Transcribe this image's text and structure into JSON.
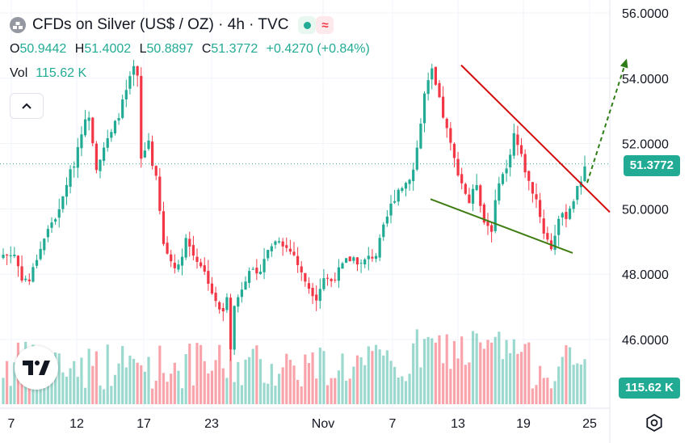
{
  "header": {
    "title": "CFDs on Silver (US$ / OZ) · 4h · TVC",
    "ohlc": [
      {
        "k": "O",
        "v": "50.9442"
      },
      {
        "k": "H",
        "v": "51.4002"
      },
      {
        "k": "L",
        "v": "50.8897"
      },
      {
        "k": "C",
        "v": "51.3772"
      }
    ],
    "change": "+0.4270 (+0.84%)",
    "vol_label": "Vol",
    "vol_value": "115.62 K"
  },
  "price_label": "51.3772",
  "volume_label": "115.62 K",
  "colors": {
    "up": "#22ab94",
    "down": "#f23645",
    "resistance_line": "#d30a0a",
    "support_line": "#3f7d12",
    "projection_arrow": "#2f7d17"
  },
  "chart_data": {
    "type": "candlestick",
    "instrument": "CFDs on Silver (US$ / OZ)",
    "timeframe": "4h",
    "source": "TVC",
    "y_axis": {
      "range": [
        44.8,
        56.3
      ],
      "ticks": [
        "56.0000",
        "54.0000",
        "52.0000",
        "50.0000",
        "48.0000",
        "46.0000"
      ]
    },
    "x_axis": {
      "ticks": [
        "7",
        "12",
        "17",
        "23",
        "Nov",
        "7",
        "13",
        "19",
        "25"
      ]
    },
    "last_price": 51.3772,
    "anchors": [
      [
        0,
        48.6
      ],
      [
        3,
        48.6
      ],
      [
        5,
        47.9
      ],
      [
        7,
        47.8
      ],
      [
        9,
        48.5
      ],
      [
        11,
        49.1
      ],
      [
        13,
        49.6
      ],
      [
        15,
        49.9
      ],
      [
        17,
        50.8
      ],
      [
        19,
        51.4
      ],
      [
        21,
        52.4
      ],
      [
        23,
        52.9
      ],
      [
        25,
        51.3
      ],
      [
        27,
        51.9
      ],
      [
        29,
        52.3
      ],
      [
        31,
        52.9
      ],
      [
        33,
        53.6
      ],
      [
        35,
        54.3
      ],
      [
        36,
        54.0
      ],
      [
        37,
        51.5
      ],
      [
        38,
        51.8
      ],
      [
        39,
        52.1
      ],
      [
        40,
        51.4
      ],
      [
        41,
        50.9
      ],
      [
        43,
        48.9
      ],
      [
        45,
        48.4
      ],
      [
        47,
        48.2
      ],
      [
        49,
        49.1
      ],
      [
        51,
        48.6
      ],
      [
        53,
        48.3
      ],
      [
        55,
        47.8
      ],
      [
        57,
        47.1
      ],
      [
        59,
        46.8
      ],
      [
        60,
        47.4
      ],
      [
        61,
        45.8
      ],
      [
        62,
        47.0
      ],
      [
        64,
        47.6
      ],
      [
        66,
        48.2
      ],
      [
        68,
        47.9
      ],
      [
        70,
        48.5
      ],
      [
        72,
        48.9
      ],
      [
        74,
        49.1
      ],
      [
        76,
        48.8
      ],
      [
        78,
        48.6
      ],
      [
        80,
        48.0
      ],
      [
        82,
        47.6
      ],
      [
        84,
        47.3
      ],
      [
        86,
        47.9
      ],
      [
        88,
        47.8
      ],
      [
        90,
        48.1
      ],
      [
        92,
        48.4
      ],
      [
        94,
        48.5
      ],
      [
        96,
        48.3
      ],
      [
        98,
        48.5
      ],
      [
        100,
        48.6
      ],
      [
        102,
        49.4
      ],
      [
        104,
        50.1
      ],
      [
        106,
        50.6
      ],
      [
        108,
        50.8
      ],
      [
        110,
        51.2
      ],
      [
        112,
        52.6
      ],
      [
        113,
        53.5
      ],
      [
        115,
        54.2
      ],
      [
        117,
        53.3
      ],
      [
        119,
        52.4
      ],
      [
        121,
        51.5
      ],
      [
        123,
        50.8
      ],
      [
        125,
        50.2
      ],
      [
        127,
        50.8
      ],
      [
        129,
        49.6
      ],
      [
        131,
        49.4
      ],
      [
        133,
        50.9
      ],
      [
        135,
        51.2
      ],
      [
        137,
        52.3
      ],
      [
        139,
        51.6
      ],
      [
        141,
        50.8
      ],
      [
        143,
        50.3
      ],
      [
        145,
        49.3
      ],
      [
        147,
        48.8
      ],
      [
        149,
        49.7
      ],
      [
        151,
        49.8
      ],
      [
        153,
        50.3
      ],
      [
        155,
        50.9
      ],
      [
        156,
        51.38
      ]
    ],
    "resistance_line": {
      "from": {
        "x_day": "Nov 13",
        "y": 54.4
      },
      "to": {
        "x_day": "Nov 26",
        "y": 49.9
      }
    },
    "support_line": {
      "from": {
        "x_day": "Nov 10",
        "y": 50.3
      },
      "to": {
        "x_day": "Nov 24",
        "y": 48.65
      }
    },
    "projection_arrow": {
      "from": 50.8,
      "to": 54.6
    }
  }
}
